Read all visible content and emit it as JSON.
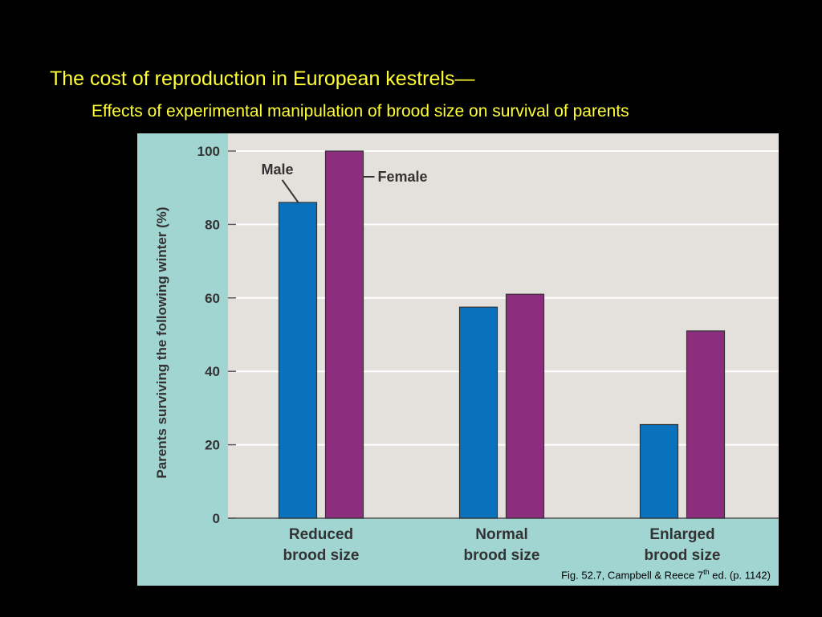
{
  "slide": {
    "title": "The cost of reproduction in European kestrels—",
    "subtitle": "Effects of experimental manipulation of brood size on survival of parents"
  },
  "citation": {
    "prefix": "Fig. 52.7, Campbell & Reece 7",
    "superscript": "th",
    "suffix": " ed. (p. 1142)"
  },
  "colors": {
    "male": "#0a72bc",
    "female": "#8c2d7d",
    "plot_background": "#e4e0dc",
    "panel_background": "#a0d5d2",
    "gridline": "#ffffff"
  },
  "chart_data": {
    "type": "bar",
    "title": "",
    "xlabel": "",
    "ylabel": "Parents surviving the following winter (%)",
    "ylim": [
      0,
      100
    ],
    "yticks": [
      0,
      20,
      40,
      60,
      80,
      100
    ],
    "grid": true,
    "categories": [
      {
        "line1": "Reduced",
        "line2": "brood size"
      },
      {
        "line1": "Normal",
        "line2": "brood size"
      },
      {
        "line1": "Enlarged",
        "line2": "brood size"
      }
    ],
    "series": [
      {
        "name": "Male",
        "values": [
          86,
          57.5,
          25.5
        ]
      },
      {
        "name": "Female",
        "values": [
          100,
          61,
          51
        ]
      }
    ],
    "legend": "annotation-labels on first group"
  }
}
